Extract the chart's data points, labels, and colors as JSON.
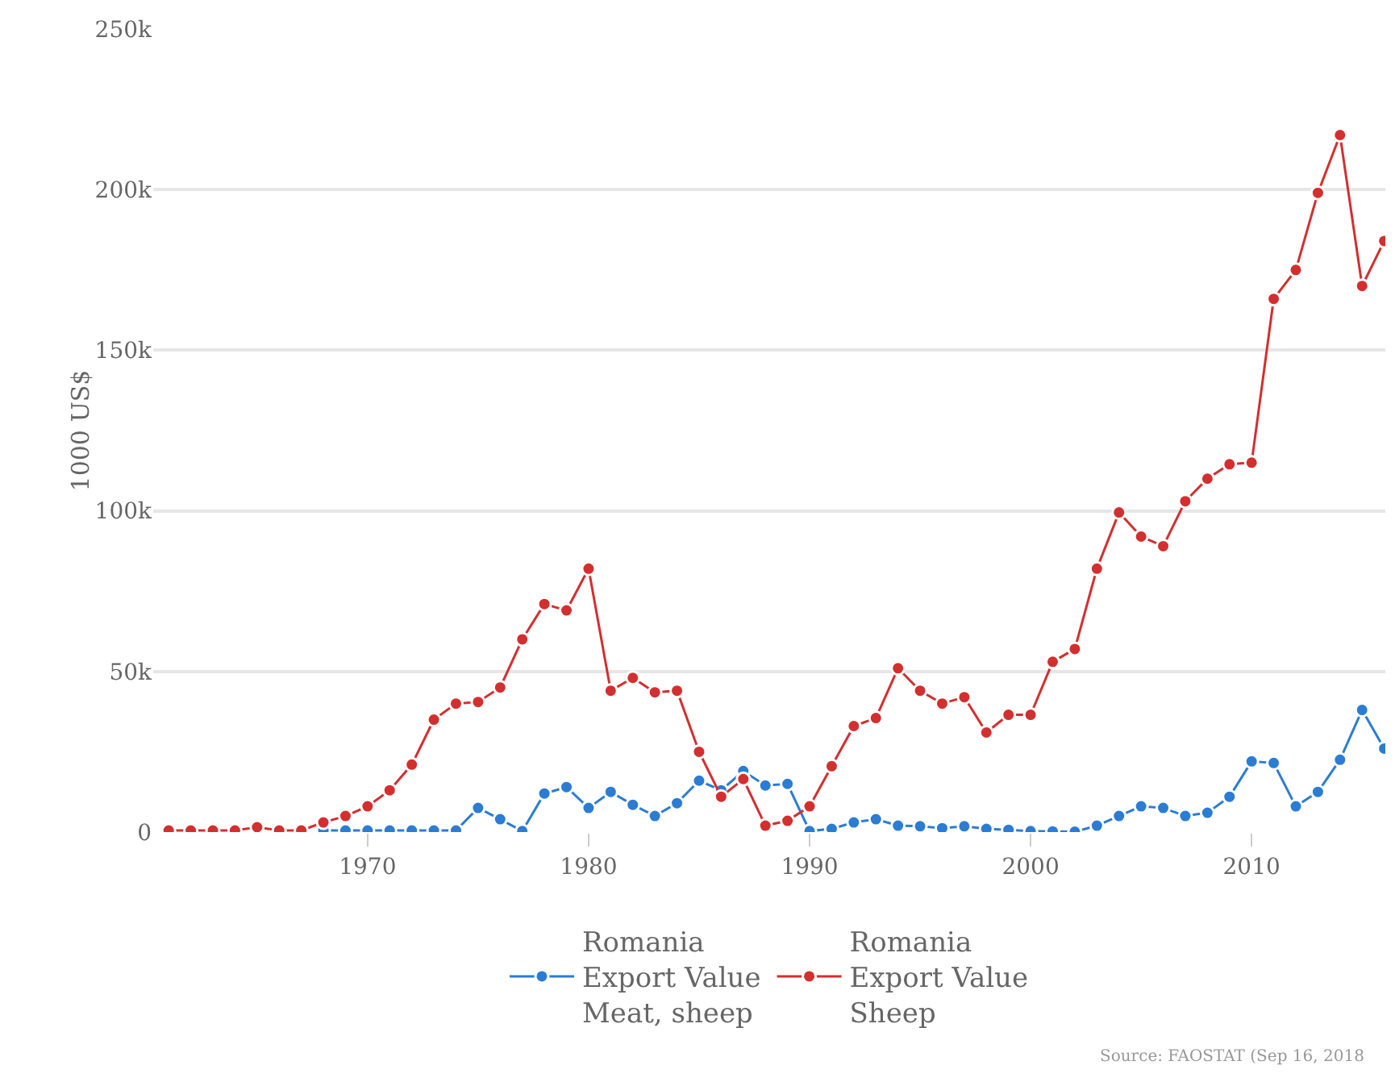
{
  "chart_data": {
    "type": "line",
    "ylabel": "1000 US$",
    "x": [
      1961,
      1962,
      1963,
      1964,
      1965,
      1966,
      1967,
      1968,
      1969,
      1970,
      1971,
      1972,
      1973,
      1974,
      1975,
      1976,
      1977,
      1978,
      1979,
      1980,
      1981,
      1982,
      1983,
      1984,
      1985,
      1986,
      1987,
      1988,
      1989,
      1990,
      1991,
      1992,
      1993,
      1994,
      1995,
      1996,
      1997,
      1998,
      1999,
      2000,
      2001,
      2002,
      2003,
      2004,
      2005,
      2006,
      2007,
      2008,
      2009,
      2010,
      2011,
      2012,
      2013,
      2014,
      2015,
      2016
    ],
    "series": [
      {
        "name": "Romania\nExport Value\nMeat, sheep",
        "color": "#2b7cd3",
        "values": [
          null,
          null,
          null,
          null,
          null,
          null,
          null,
          500,
          500,
          500,
          500,
          500,
          500,
          500,
          7500,
          4000,
          300,
          12000,
          14000,
          7500,
          12500,
          8500,
          5000,
          9000,
          16000,
          13000,
          19000,
          14500,
          15000,
          300,
          1000,
          3000,
          4000,
          2000,
          1800,
          1200,
          1800,
          1000,
          700,
          300,
          200,
          100,
          2000,
          5000,
          8000,
          7500,
          5000,
          6000,
          11000,
          22000,
          21500,
          8000,
          12500,
          22500,
          38000,
          26000
        ]
      },
      {
        "name": "Romania\nExport Value\nSheep",
        "color": "#d32f2f",
        "values": [
          500,
          500,
          500,
          500,
          1500,
          500,
          500,
          3000,
          5000,
          8000,
          13000,
          21000,
          35000,
          40000,
          40500,
          45000,
          60000,
          71000,
          69000,
          82000,
          44000,
          48000,
          43500,
          44000,
          25000,
          11000,
          16500,
          2000,
          3500,
          8000,
          20500,
          33000,
          35500,
          51000,
          44000,
          40000,
          42000,
          31000,
          36500,
          36500,
          53000,
          57000,
          82000,
          99500,
          92000,
          89000,
          103000,
          110000,
          114500,
          115000,
          166000,
          175000,
          199000,
          217000,
          170000,
          184000
        ]
      }
    ],
    "xlim": [
      1960.3,
      2016.05
    ],
    "xticks": [
      1970,
      1980,
      1990,
      2000,
      2010
    ],
    "ylim": [
      0,
      250000
    ],
    "yticks": [
      {
        "value": 0,
        "label": "0"
      },
      {
        "value": 50000,
        "label": "50k"
      },
      {
        "value": 100000,
        "label": "100k"
      },
      {
        "value": 150000,
        "label": "150k"
      },
      {
        "value": 200000,
        "label": "200k"
      },
      {
        "value": 250000,
        "label": "250k"
      }
    ],
    "grid": "y",
    "legend": "bottom",
    "marker": "circle",
    "line_style": "solid",
    "annotations": [
      "Source: FAOSTAT (Sep 16, 2018"
    ]
  }
}
